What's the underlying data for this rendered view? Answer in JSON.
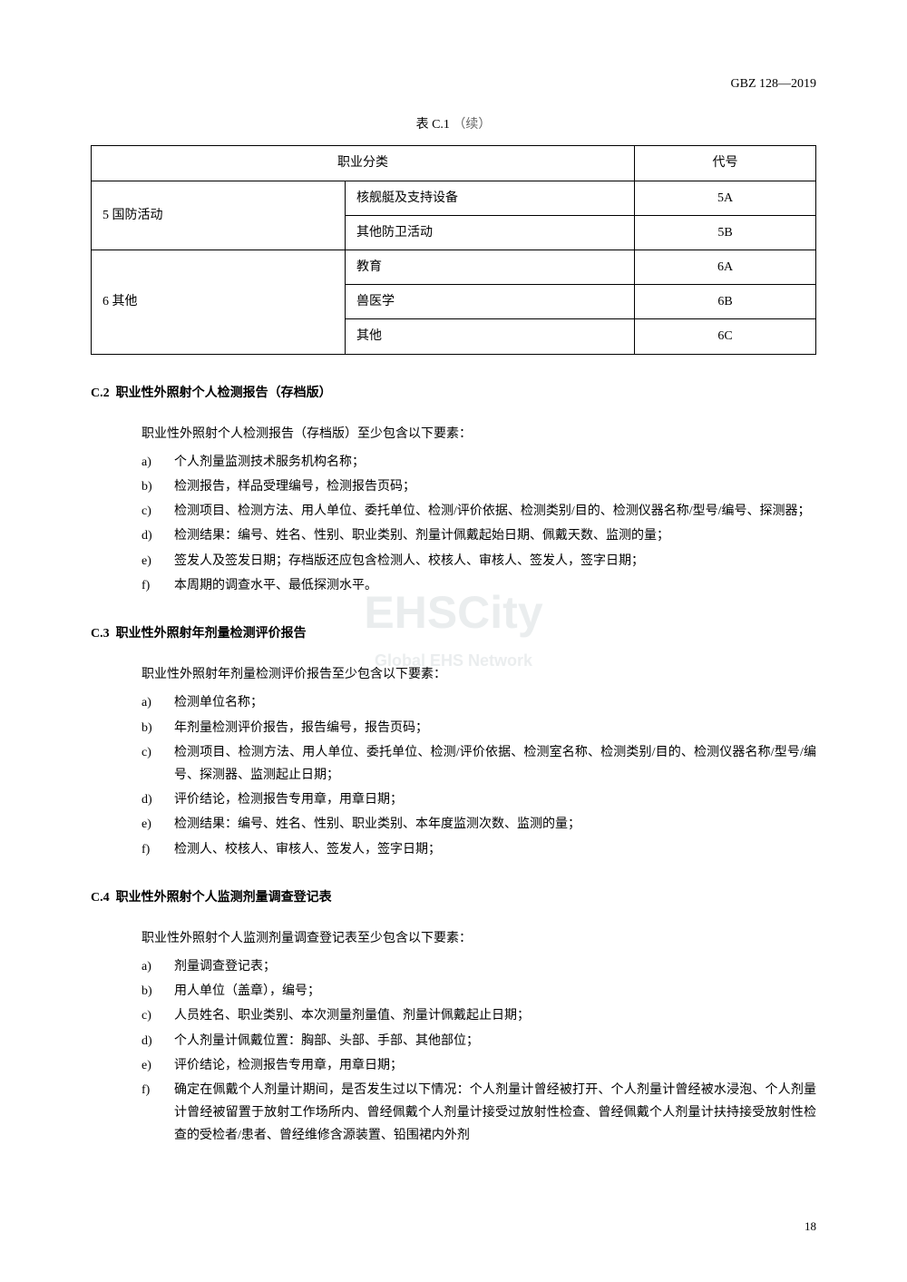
{
  "doc_code": "GBZ 128—2019",
  "table": {
    "caption_main": "表 C.1",
    "caption_cont": "（续）",
    "header_cat": "职业分类",
    "header_code": "代号",
    "groups": [
      {
        "label": "5 国防活动",
        "rows": [
          {
            "sub": "核舰艇及支持设备",
            "code": "5A"
          },
          {
            "sub": "其他防卫活动",
            "code": "5B"
          }
        ]
      },
      {
        "label": "6 其他",
        "rows": [
          {
            "sub": "教育",
            "code": "6A"
          },
          {
            "sub": "兽医学",
            "code": "6B"
          },
          {
            "sub": "其他",
            "code": "6C"
          }
        ]
      }
    ]
  },
  "sections": [
    {
      "num": "C.2",
      "title": "职业性外照射个人检测报告（存档版）",
      "intro": "职业性外照射个人检测报告（存档版）至少包含以下要素：",
      "items": [
        {
          "marker": "a)",
          "text": "个人剂量监测技术服务机构名称；"
        },
        {
          "marker": "b)",
          "text": "检测报告，样品受理编号，检测报告页码；"
        },
        {
          "marker": "c)",
          "text": "检测项目、检测方法、用人单位、委托单位、检测/评价依据、检测类别/目的、检测仪器名称/型号/编号、探测器；"
        },
        {
          "marker": "d)",
          "text": "检测结果：编号、姓名、性别、职业类别、剂量计佩戴起始日期、佩戴天数、监测的量；"
        },
        {
          "marker": "e)",
          "text": "签发人及签发日期；存档版还应包含检测人、校核人、审核人、签发人，签字日期；"
        },
        {
          "marker": "f)",
          "text": "本周期的调查水平、最低探测水平。"
        }
      ]
    },
    {
      "num": "C.3",
      "title": "职业性外照射年剂量检测评价报告",
      "intro": "职业性外照射年剂量检测评价报告至少包含以下要素：",
      "items": [
        {
          "marker": "a)",
          "text": "检测单位名称；"
        },
        {
          "marker": "b)",
          "text": "年剂量检测评价报告，报告编号，报告页码；"
        },
        {
          "marker": "c)",
          "text": "检测项目、检测方法、用人单位、委托单位、检测/评价依据、检测室名称、检测类别/目的、检测仪器名称/型号/编号、探测器、监测起止日期；"
        },
        {
          "marker": "d)",
          "text": "评价结论，检测报告专用章，用章日期；"
        },
        {
          "marker": "e)",
          "text": "检测结果：编号、姓名、性别、职业类别、本年度监测次数、监测的量；"
        },
        {
          "marker": "f)",
          "text": "检测人、校核人、审核人、签发人，签字日期；"
        }
      ]
    },
    {
      "num": "C.4",
      "title": "职业性外照射个人监测剂量调查登记表",
      "intro": "职业性外照射个人监测剂量调查登记表至少包含以下要素：",
      "items": [
        {
          "marker": "a)",
          "text": "剂量调查登记表；"
        },
        {
          "marker": "b)",
          "text": "用人单位（盖章），编号；"
        },
        {
          "marker": "c)",
          "text": "人员姓名、职业类别、本次测量剂量值、剂量计佩戴起止日期；"
        },
        {
          "marker": "d)",
          "text": "个人剂量计佩戴位置：胸部、头部、手部、其他部位；"
        },
        {
          "marker": "e)",
          "text": "评价结论，检测报告专用章，用章日期；"
        },
        {
          "marker": "f)",
          "text": "确定在佩戴个人剂量计期间，是否发生过以下情况：个人剂量计曾经被打开、个人剂量计曾经被水浸泡、个人剂量计曾经被留置于放射工作场所内、曾经佩戴个人剂量计接受过放射性检查、曾经佩戴个人剂量计扶持接受放射性检查的受检者/患者、曾经维修含源装置、铅围裙内外剂"
        }
      ]
    }
  ],
  "watermark": {
    "main": "EHSCity",
    "sub": "Global EHS Network"
  },
  "page_num": "18"
}
